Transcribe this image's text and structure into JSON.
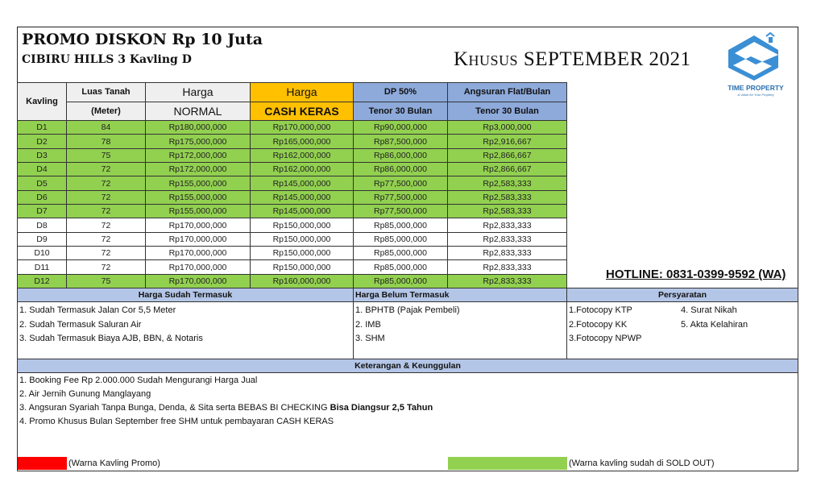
{
  "header": {
    "title": "PROMO DISKON Rp 10 Juta",
    "subtitle": "CIBIRU HILLS 3 Kavling D",
    "promo_period": "Khusus SEPTEMBER 2021"
  },
  "logo": {
    "name": "TIME PROPERTY",
    "tagline": "A Value for Your Property",
    "color": "#3b8fd4"
  },
  "table": {
    "headers": {
      "kavling": "Kavling",
      "luas_1": "Luas Tanah",
      "luas_2": "(Meter)",
      "normal_1": "Harga",
      "normal_2": "NORMAL",
      "cash_1": "Harga",
      "cash_2": "CASH KERAS",
      "dp_1": "DP 50%",
      "dp_2": "Tenor 30 Bulan",
      "ang_1": "Angsuran Flat/Bulan",
      "ang_2": "Tenor 30 Bulan"
    },
    "rows": [
      {
        "kavling": "D1",
        "luas": "84",
        "normal": "Rp180,000,000",
        "cash": "Rp170,000,000",
        "dp": "Rp90,000,000",
        "angsuran": "Rp3,000,000",
        "sold": true
      },
      {
        "kavling": "D2",
        "luas": "78",
        "normal": "Rp175,000,000",
        "cash": "Rp165,000,000",
        "dp": "Rp87,500,000",
        "angsuran": "Rp2,916,667",
        "sold": true
      },
      {
        "kavling": "D3",
        "luas": "75",
        "normal": "Rp172,000,000",
        "cash": "Rp162,000,000",
        "dp": "Rp86,000,000",
        "angsuran": "Rp2,866,667",
        "sold": true
      },
      {
        "kavling": "D4",
        "luas": "72",
        "normal": "Rp172,000,000",
        "cash": "Rp162,000,000",
        "dp": "Rp86,000,000",
        "angsuran": "Rp2,866,667",
        "sold": true
      },
      {
        "kavling": "D5",
        "luas": "72",
        "normal": "Rp155,000,000",
        "cash": "Rp145,000,000",
        "dp": "Rp77,500,000",
        "angsuran": "Rp2,583,333",
        "sold": true
      },
      {
        "kavling": "D6",
        "luas": "72",
        "normal": "Rp155,000,000",
        "cash": "Rp145,000,000",
        "dp": "Rp77,500,000",
        "angsuran": "Rp2,583,333",
        "sold": true
      },
      {
        "kavling": "D7",
        "luas": "72",
        "normal": "Rp155,000,000",
        "cash": "Rp145,000,000",
        "dp": "Rp77,500,000",
        "angsuran": "Rp2,583,333",
        "sold": true
      },
      {
        "kavling": "D8",
        "luas": "72",
        "normal": "Rp170,000,000",
        "cash": "Rp150,000,000",
        "dp": "Rp85,000,000",
        "angsuran": "Rp2,833,333",
        "sold": false
      },
      {
        "kavling": "D9",
        "luas": "72",
        "normal": "Rp170,000,000",
        "cash": "Rp150,000,000",
        "dp": "Rp85,000,000",
        "angsuran": "Rp2,833,333",
        "sold": false
      },
      {
        "kavling": "D10",
        "luas": "72",
        "normal": "Rp170,000,000",
        "cash": "Rp150,000,000",
        "dp": "Rp85,000,000",
        "angsuran": "Rp2,833,333",
        "sold": false
      },
      {
        "kavling": "D11",
        "luas": "72",
        "normal": "Rp170,000,000",
        "cash": "Rp150,000,000",
        "dp": "Rp85,000,000",
        "angsuran": "Rp2,833,333",
        "sold": false
      },
      {
        "kavling": "D12",
        "luas": "75",
        "normal": "Rp170,000,000",
        "cash": "Rp160,000,000",
        "dp": "Rp85,000,000",
        "angsuran": "Rp2,833,333",
        "sold": true
      }
    ]
  },
  "hotline": "HOTLINE: 0831-0399-9592 (WA)",
  "sudah": {
    "title": "Harga Sudah Termasuk",
    "items": [
      "1. Sudah Termasuk Jalan Cor 5,5 Meter",
      "2. Sudah Termasuk Saluran Air",
      "3. Sudah Termasuk Biaya AJB, BBN, & Notaris"
    ]
  },
  "belum": {
    "title": "Harga Belum Termasuk",
    "items": [
      "1. BPHTB (Pajak Pembeli)",
      "2. IMB",
      "3. SHM"
    ]
  },
  "syarat": {
    "title": "Persyaratan",
    "items": [
      "1.Fotocopy KTP",
      "2.Fotocopy KK",
      "3.Fotocopy NPWP",
      "4. Surat Nikah",
      "5. Akta Kelahiran"
    ]
  },
  "keterangan": {
    "title": "Keterangan & Keunggulan",
    "items": [
      "1. Booking Fee Rp 2.000.000  Sudah Mengurangi Harga Jual",
      "2. Air Jernih Gunung Manglayang",
      "3. Angsuran Syariah Tanpa Bunga, Denda, & Sita serta  BEBAS BI CHECKING ",
      "4. Promo Khusus Bulan September  free SHM untuk pembayaran CASH KERAS"
    ],
    "item3_bold": "Bisa Diangsur 2,5 Tahun"
  },
  "legend": {
    "promo_label": "(Warna Kavling Promo)",
    "promo_color": "#ff0000",
    "sold_label": "(Warna kavling sudah di SOLD OUT)",
    "sold_color": "#92d050"
  }
}
